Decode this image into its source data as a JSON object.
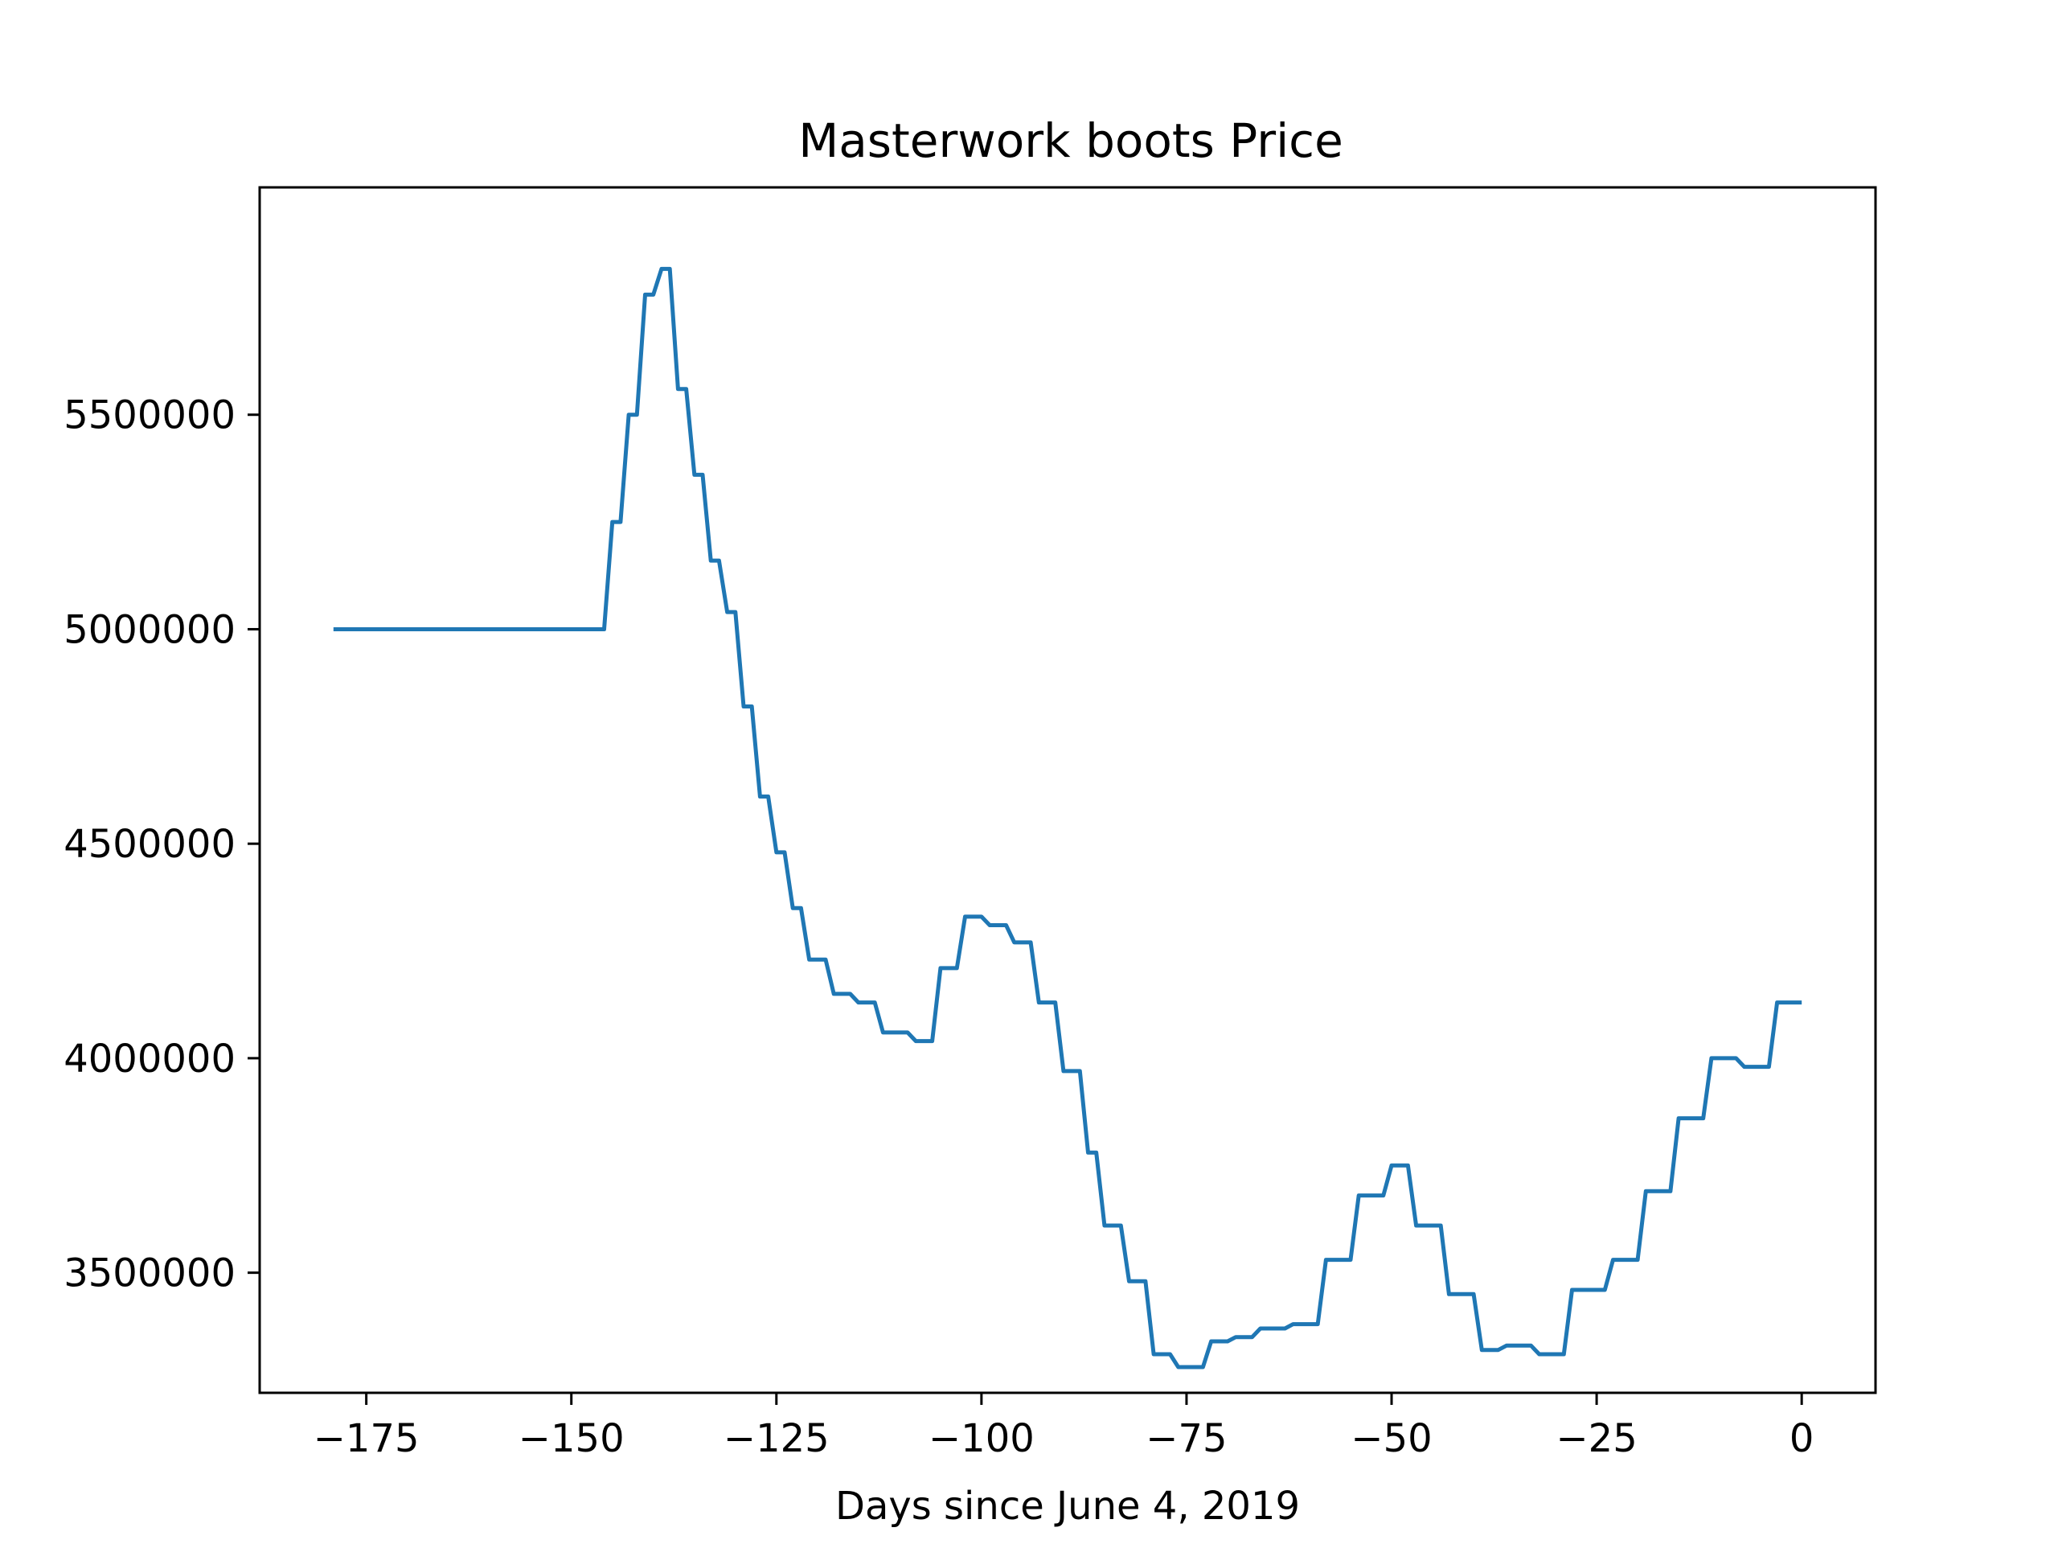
{
  "chart_data": {
    "type": "line",
    "title": "Masterwork boots Price",
    "xlabel": "Days since June 4, 2019",
    "ylabel": "",
    "xlim": [
      -188,
      9
    ],
    "ylim": [
      3220000,
      6030000
    ],
    "xticks": [
      -175,
      -150,
      -125,
      -100,
      -75,
      -50,
      -25,
      0
    ],
    "yticks": [
      3500000,
      4000000,
      4500000,
      5000000,
      5500000
    ],
    "grid": false,
    "series": [
      {
        "color": "#1f77b4",
        "x": [
          -179,
          -146,
          -145,
          -144,
          -143,
          -142,
          -141,
          -140,
          -139,
          -138,
          -137,
          -136,
          -135,
          -134,
          -133,
          -132,
          -131,
          -130,
          -129,
          -128,
          -127,
          -126,
          -125,
          -124,
          -123,
          -122,
          -121,
          -120,
          -119,
          -118,
          -117,
          -116,
          -115,
          -114,
          -113,
          -112,
          -111,
          -110,
          -109,
          -108,
          -107,
          -106,
          -105,
          -104,
          -103,
          -102,
          -101,
          -100,
          -99,
          -98,
          -97,
          -96,
          -95,
          -94,
          -93,
          -92,
          -91,
          -90,
          -89,
          -88,
          -87,
          -86,
          -85,
          -84,
          -83,
          -82,
          -81,
          -80,
          -79,
          -78,
          -77,
          -76,
          -75,
          -74,
          -73,
          -72,
          -71,
          -70,
          -69,
          -68,
          -67,
          -66,
          -65,
          -64,
          -63,
          -62,
          -61,
          -60,
          -59,
          -58,
          -57,
          -56,
          -55,
          -54,
          -53,
          -52,
          -51,
          -50,
          -49,
          -48,
          -47,
          -46,
          -45,
          -44,
          -43,
          -42,
          -41,
          -40,
          -39,
          -38,
          -37,
          -36,
          -35,
          -34,
          -33,
          -32,
          -31,
          -30,
          -29,
          -28,
          -27,
          -26,
          -25,
          -24,
          -23,
          -22,
          -21,
          -20,
          -19,
          -18,
          -17,
          -16,
          -15,
          -14,
          -13,
          -12,
          -11,
          -10,
          -9,
          -8,
          -7,
          -6,
          -5,
          -4,
          -3,
          -2,
          -1,
          0
        ],
        "y": [
          5000000,
          5000000,
          5250000,
          5250000,
          5500000,
          5500000,
          5780000,
          5780000,
          5840000,
          5840000,
          5560000,
          5560000,
          5360000,
          5360000,
          5160000,
          5160000,
          5040000,
          5040000,
          4820000,
          4820000,
          4610000,
          4610000,
          4480000,
          4480000,
          4350000,
          4350000,
          4230000,
          4230000,
          4230000,
          4150000,
          4150000,
          4150000,
          4130000,
          4130000,
          4130000,
          4060000,
          4060000,
          4060000,
          4060000,
          4040000,
          4040000,
          4040000,
          4210000,
          4210000,
          4210000,
          4330000,
          4330000,
          4330000,
          4310000,
          4310000,
          4310000,
          4270000,
          4270000,
          4270000,
          4130000,
          4130000,
          4130000,
          3970000,
          3970000,
          3970000,
          3780000,
          3780000,
          3610000,
          3610000,
          3610000,
          3480000,
          3480000,
          3480000,
          3310000,
          3310000,
          3310000,
          3280000,
          3280000,
          3280000,
          3280000,
          3340000,
          3340000,
          3340000,
          3350000,
          3350000,
          3350000,
          3370000,
          3370000,
          3370000,
          3370000,
          3380000,
          3380000,
          3380000,
          3380000,
          3530000,
          3530000,
          3530000,
          3530000,
          3680000,
          3680000,
          3680000,
          3680000,
          3750000,
          3750000,
          3750000,
          3610000,
          3610000,
          3610000,
          3610000,
          3450000,
          3450000,
          3450000,
          3450000,
          3320000,
          3320000,
          3320000,
          3330000,
          3330000,
          3330000,
          3330000,
          3310000,
          3310000,
          3310000,
          3310000,
          3460000,
          3460000,
          3460000,
          3460000,
          3460000,
          3530000,
          3530000,
          3530000,
          3530000,
          3690000,
          3690000,
          3690000,
          3690000,
          3860000,
          3860000,
          3860000,
          3860000,
          4000000,
          4000000,
          4000000,
          4000000,
          3980000,
          3980000,
          3980000,
          3980000,
          4130000,
          4130000,
          4130000,
          4130000
        ]
      }
    ]
  }
}
